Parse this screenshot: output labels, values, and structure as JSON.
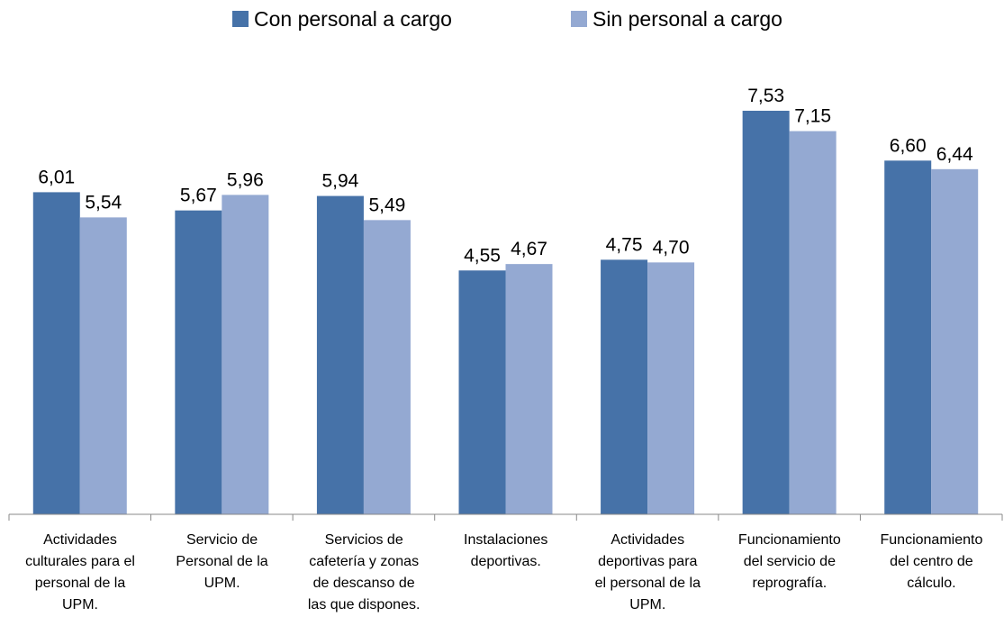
{
  "chart_data": {
    "type": "bar",
    "categories": [
      "Actividades\nculturales para el\npersonal de la\nUPM.",
      "Servicio de\nPersonal de la\nUPM.",
      "Servicios de\ncafetería y zonas\nde descanso de\nlas que dispones.",
      "Instalaciones\ndeportivas.",
      "Actividades\ndeportivas para\nel personal de la\nUPM.",
      "Funcionamiento\ndel servicio de\nreprografía.",
      "Funcionamiento\ndel centro de\ncálculo."
    ],
    "series": [
      {
        "name": "Con personal a cargo",
        "color": "#4672a8",
        "values": [
          6.01,
          5.67,
          5.94,
          4.55,
          4.75,
          7.53,
          6.6
        ],
        "value_labels": [
          "6,01",
          "5,67",
          "5,94",
          "4,55",
          "4,75",
          "7,53",
          "6,60"
        ]
      },
      {
        "name": "Sin personal a cargo",
        "color": "#94a9d2",
        "values": [
          5.54,
          5.96,
          5.49,
          4.67,
          4.7,
          7.15,
          6.44
        ],
        "value_labels": [
          "5,54",
          "5,96",
          "5,49",
          "4,67",
          "4,70",
          "7,15",
          "6,44"
        ]
      }
    ],
    "legend": "top"
  }
}
